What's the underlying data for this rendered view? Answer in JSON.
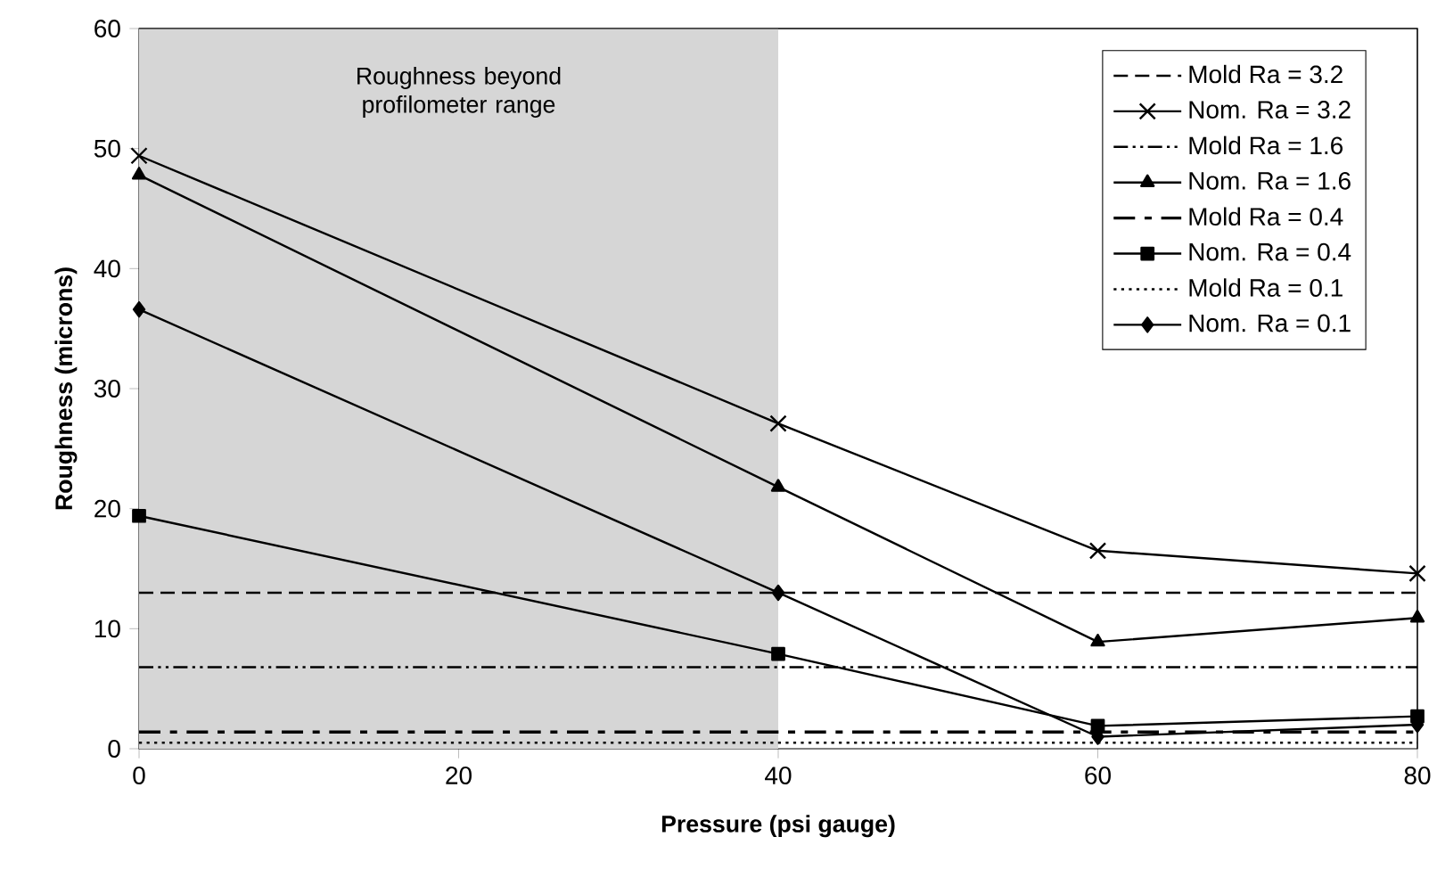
{
  "chart_data": {
    "type": "line",
    "xlabel": "Pressure (psi gauge)",
    "ylabel": "Roughness (microns)",
    "xlim": [
      0,
      80
    ],
    "ylim": [
      0,
      60
    ],
    "xticks": [
      0,
      20,
      40,
      60,
      80
    ],
    "yticks": [
      0,
      10,
      20,
      30,
      40,
      50,
      60
    ],
    "legend": "top right",
    "grid": false,
    "bands": [
      {
        "axis": "x",
        "from": 0,
        "to": 40,
        "label": "Roughness beyond profilometer range",
        "color": "#d6d6d6"
      }
    ],
    "series": [
      {
        "name": "Mold Ra = 3.2",
        "color": "#000000",
        "x": [
          0,
          80
        ],
        "values": [
          13.0,
          13.0
        ],
        "line_style": "dashed",
        "marker": "none"
      },
      {
        "name": "Nom. Ra = 3.2",
        "color": "#000000",
        "x": [
          0,
          40,
          60,
          80
        ],
        "values": [
          49.4,
          27.1,
          16.5,
          14.6
        ],
        "line_style": "solid",
        "marker": "cross"
      },
      {
        "name": "Mold Ra = 1.6",
        "color": "#000000",
        "x": [
          0,
          80
        ],
        "values": [
          6.8,
          6.8
        ],
        "line_style": "dashdotdotted",
        "marker": "none"
      },
      {
        "name": "Nom. Ra = 1.6",
        "color": "#000000",
        "x": [
          0,
          40,
          60,
          80
        ],
        "values": [
          47.8,
          21.8,
          8.9,
          10.9
        ],
        "line_style": "solid",
        "marker": "triangle"
      },
      {
        "name": "Mold Ra = 0.4",
        "color": "#000000",
        "x": [
          0,
          80
        ],
        "values": [
          1.4,
          1.4
        ],
        "line_style": "dashdot",
        "marker": "none"
      },
      {
        "name": "Nom. Ra = 0.4",
        "color": "#000000",
        "x": [
          0,
          40,
          60,
          80
        ],
        "values": [
          19.4,
          7.9,
          1.9,
          2.7
        ],
        "line_style": "solid",
        "marker": "square"
      },
      {
        "name": "Mold Ra = 0.1",
        "color": "#000000",
        "x": [
          0,
          80
        ],
        "values": [
          0.5,
          0.5
        ],
        "line_style": "dotted",
        "marker": "none"
      },
      {
        "name": "Nom. Ra = 0.1",
        "color": "#000000",
        "x": [
          0,
          40,
          60,
          80
        ],
        "values": [
          36.6,
          13.0,
          1.0,
          2.0
        ],
        "line_style": "solid",
        "marker": "diamond"
      }
    ]
  }
}
